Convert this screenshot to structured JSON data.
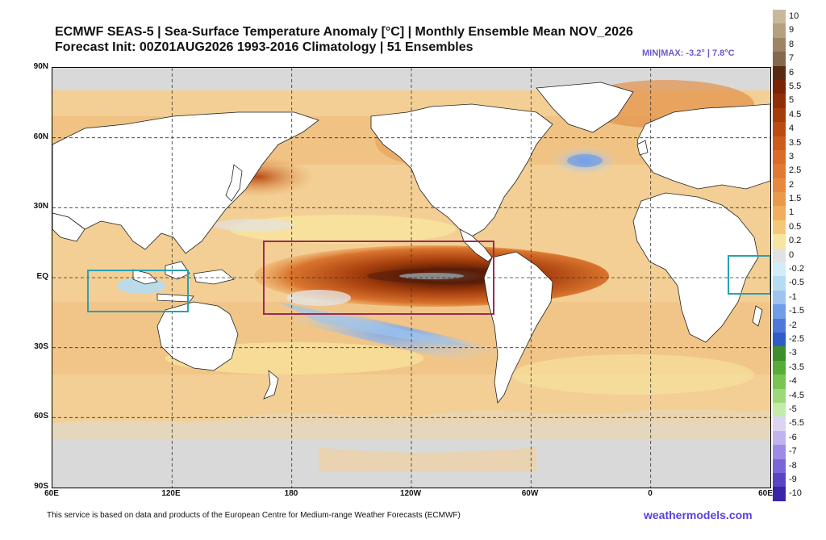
{
  "header": {
    "title_line1": "ECMWF SEAS-5 | Sea-Surface Temperature Anomaly [°C] | Monthly Ensemble Mean NOV_2026",
    "title_line2": "Forecast Init: 00Z01AUG2026    1993-2016 Climatology | 51 Ensembles",
    "minmax": "MIN|MAX: -3.2° | 7.8°C"
  },
  "axes": {
    "lat_labels": [
      "90N",
      "60N",
      "30N",
      "EQ",
      "30S",
      "60S",
      "90S"
    ],
    "lon_labels": [
      "60E",
      "120E",
      "180",
      "120W",
      "60W",
      "0",
      "60E"
    ]
  },
  "colorbar": {
    "labels": [
      "10",
      "9",
      "8",
      "7",
      "6",
      "5.5",
      "5",
      "4.5",
      "4",
      "3.5",
      "3",
      "2.5",
      "2",
      "1.5",
      "1",
      "0.5",
      "0.2",
      "0",
      "-0.2",
      "-0.5",
      "-1",
      "-1.5",
      "-2",
      "-2.5",
      "-3",
      "-3.5",
      "-4",
      "-4.5",
      "-5",
      "-5.5",
      "-6",
      "-7",
      "-8",
      "-9",
      "-10"
    ],
    "colors": [
      "#c9b99a",
      "#b5a17e",
      "#9e8462",
      "#846a4c",
      "#5a2a10",
      "#7a2306",
      "#8f2f08",
      "#a63b0c",
      "#bc4b12",
      "#cd5c1c",
      "#d86c28",
      "#e07a32",
      "#e6893e",
      "#eb9a4c",
      "#f0ae5e",
      "#f5c878",
      "#f8e59e",
      "#e2e2e2",
      "#d4ecf7",
      "#b6dcf2",
      "#9cc4ee",
      "#6f9de6",
      "#4f78d8",
      "#2f5cc8",
      "#3d8f2c",
      "#57ad3a",
      "#78c552",
      "#9dd97a",
      "#c3ebaa",
      "#ddd3f5",
      "#c2b3f0",
      "#9f8be6",
      "#7a66d8",
      "#5a44c4",
      "#3a24a8"
    ]
  },
  "footer": {
    "attribution": "This service is based on data and products of the European Centre for Medium-range Weather Forecasts (ECMWF)",
    "brand": "weathermodels.com"
  },
  "colors": {
    "land": "#ffffff",
    "ice": "#d9d9d9",
    "warm": "#f3cf95",
    "nino_box": "#9b2b55",
    "iod_box": "#2aa0b5"
  }
}
